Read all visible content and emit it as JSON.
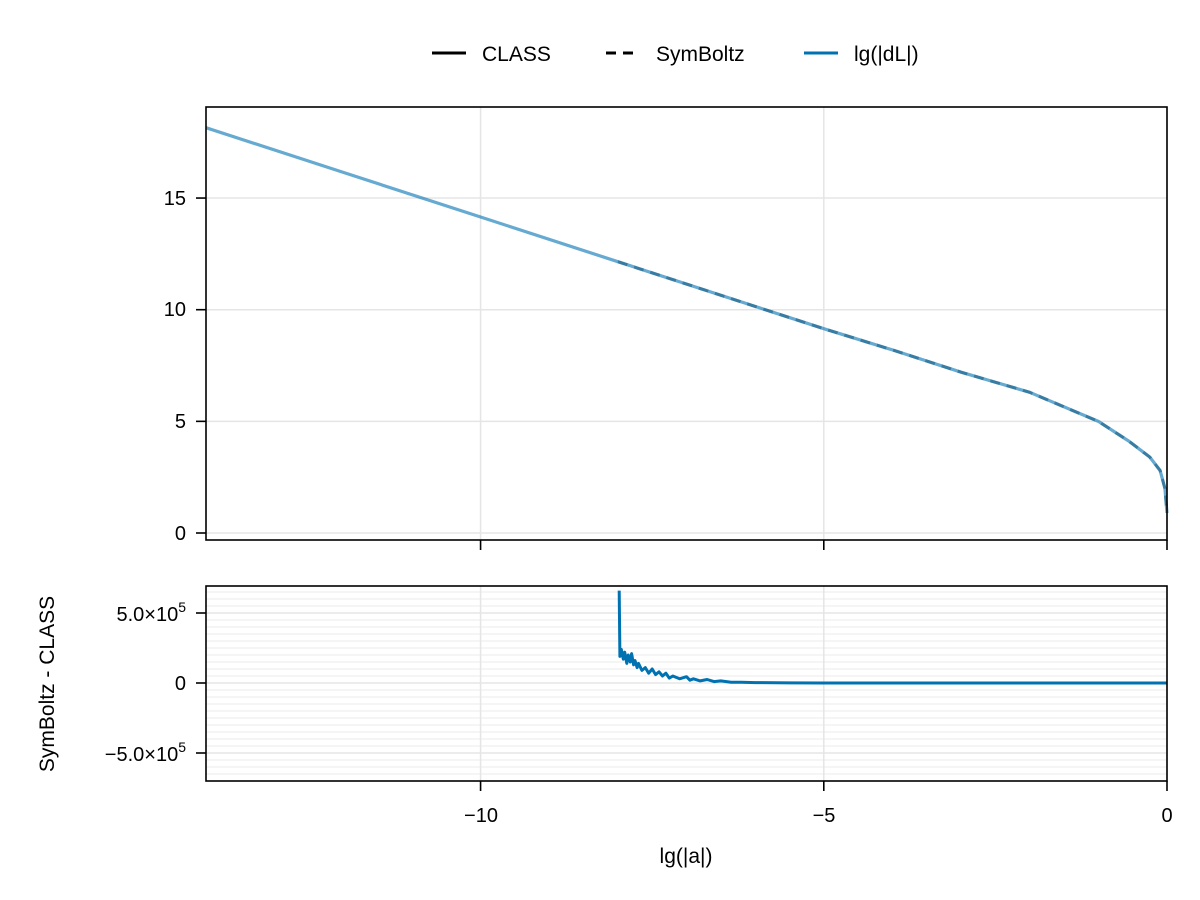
{
  "legend": {
    "items": [
      {
        "label": "CLASS",
        "style": "solid",
        "color": "#000000"
      },
      {
        "label": "SymBoltz",
        "style": "dashed",
        "color": "#000000"
      },
      {
        "label": "lg(|dL|)",
        "style": "solid",
        "color": "#0072b2"
      }
    ]
  },
  "colors": {
    "series_blue": "#0072b2",
    "grid": "#e5e5e5",
    "minor_grid": "#f2f2f2",
    "axis": "#000000"
  },
  "chart_data": [
    {
      "type": "line",
      "panel": "top",
      "title": "",
      "xlabel": "",
      "ylabel": "",
      "xlim": [
        -14.0,
        0.0
      ],
      "ylim": [
        -0.3,
        19.07
      ],
      "yticks": [
        0,
        5,
        10,
        15
      ],
      "ytick_labels": [
        "0",
        "5",
        "10",
        "15"
      ],
      "xticks": [
        -10,
        -5,
        0
      ],
      "grid": true,
      "legend_position": "top-center",
      "series": [
        {
          "name": "CLASS",
          "style": "solid",
          "color": "#000000",
          "x": [
            -8.0,
            -6.0,
            -5.0,
            -4.0,
            -3.0,
            -2.0,
            -1.0,
            -0.55,
            -0.25,
            -0.1,
            -0.03,
            0.0
          ],
          "values": [
            12.15,
            10.15,
            9.15,
            8.2,
            7.2,
            6.3,
            5.0,
            4.1,
            3.4,
            2.8,
            2.0,
            0.9
          ]
        },
        {
          "name": "SymBoltz",
          "style": "dashed",
          "color": "#000000",
          "x": [
            -8.0,
            -6.0,
            -5.0,
            -4.0,
            -3.0,
            -2.0,
            -1.0,
            -0.55,
            -0.25,
            -0.1,
            -0.03,
            0.0
          ],
          "values": [
            12.15,
            10.15,
            9.15,
            8.2,
            7.2,
            6.3,
            5.0,
            4.1,
            3.4,
            2.8,
            2.0,
            0.9
          ]
        },
        {
          "name": "lg(|dL|)",
          "style": "solid",
          "color": "#0072b2",
          "alpha": 0.6,
          "x": [
            -14.0,
            -12.0,
            -10.0,
            -8.0,
            -6.0,
            -5.0,
            -4.0,
            -3.0,
            -2.0,
            -1.0,
            -0.55,
            -0.25,
            -0.1,
            -0.03,
            0.0
          ],
          "values": [
            18.15,
            16.15,
            14.15,
            12.15,
            10.15,
            9.15,
            8.2,
            7.2,
            6.3,
            5.0,
            4.1,
            3.4,
            2.8,
            2.0,
            0.9
          ]
        }
      ]
    },
    {
      "type": "line",
      "panel": "bottom",
      "title": "",
      "xlabel": "lg(|a|)",
      "ylabel": "SymBoltz - CLASS",
      "xlim": [
        -14.0,
        0.0
      ],
      "ylim": [
        -700000,
        693000
      ],
      "yticks": [
        -500000,
        0,
        500000
      ],
      "ytick_labels": [
        "−5.0×10⁵",
        "0",
        "5.0×10⁵"
      ],
      "xticks": [
        -10,
        -5,
        0
      ],
      "xtick_labels": [
        "−10",
        "−5",
        "0"
      ],
      "grid": true,
      "minor_grid": true,
      "series": [
        {
          "name": "SymBoltz - CLASS",
          "style": "solid",
          "color": "#0072b2",
          "x": [
            -7.98,
            -7.97,
            -7.95,
            -7.92,
            -7.9,
            -7.87,
            -7.85,
            -7.82,
            -7.8,
            -7.77,
            -7.75,
            -7.72,
            -7.7,
            -7.65,
            -7.6,
            -7.55,
            -7.5,
            -7.45,
            -7.4,
            -7.35,
            -7.3,
            -7.25,
            -7.2,
            -7.1,
            -7.0,
            -6.95,
            -6.9,
            -6.8,
            -6.7,
            -6.6,
            -6.5,
            -6.35,
            -6.2,
            -6.0,
            -5.5,
            -5.0,
            -3.0,
            0.0
          ],
          "values": [
            660000,
            190000,
            240000,
            170000,
            220000,
            140000,
            200000,
            150000,
            210000,
            130000,
            160000,
            110000,
            140000,
            90000,
            110000,
            70000,
            100000,
            60000,
            80000,
            50000,
            70000,
            35000,
            50000,
            30000,
            45000,
            20000,
            30000,
            15000,
            25000,
            10000,
            15000,
            6000,
            6000,
            3000,
            1000,
            0,
            0,
            0
          ]
        }
      ]
    }
  ],
  "axes": {
    "top": {
      "ytick_labels": [
        "0",
        "5",
        "10",
        "15"
      ]
    },
    "bottom": {
      "ytick_labels": {
        "pos": "5.0×10",
        "zero": "0",
        "neg": "−5.0×10",
        "exp": "5"
      },
      "xtick_labels": [
        "−10",
        "−5",
        "0"
      ],
      "xlabel": "lg(|a|)",
      "ylabel": "SymBoltz - CLASS"
    }
  }
}
